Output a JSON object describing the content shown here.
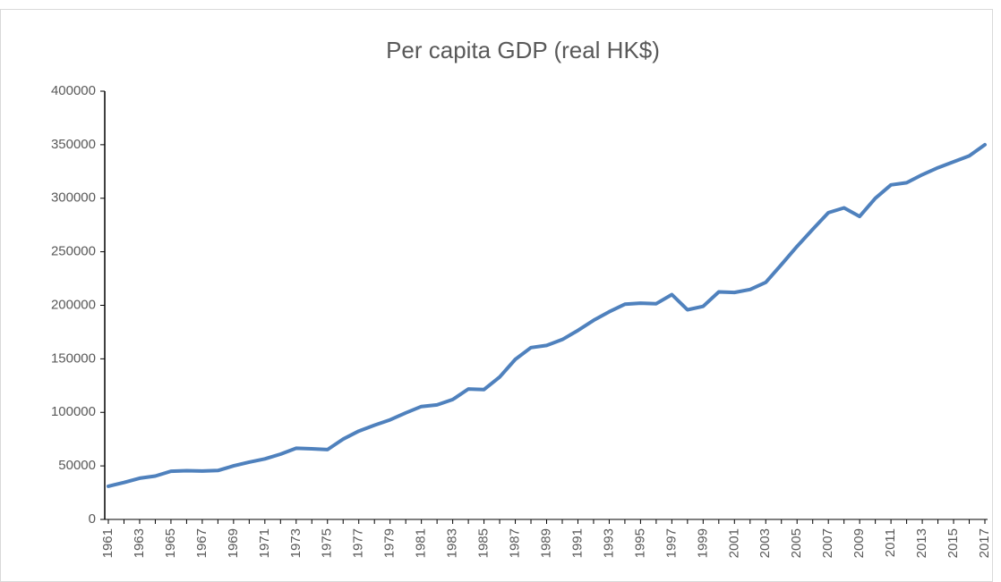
{
  "chart_data": {
    "type": "line",
    "title": "Per capita GDP (real HK$)",
    "categories": [
      "1961",
      null,
      "1963",
      null,
      "1965",
      null,
      "1967",
      null,
      "1969",
      null,
      "1971",
      null,
      "1973",
      null,
      "1975",
      null,
      "1977",
      null,
      "1979",
      null,
      "1981",
      null,
      "1983",
      null,
      "1985",
      null,
      "1987",
      null,
      "1989",
      null,
      "1991",
      null,
      "1993",
      null,
      "1995",
      null,
      "1997",
      null,
      "1999",
      null,
      "2001",
      null,
      "2003",
      null,
      "2005",
      null,
      "2007",
      null,
      "2009",
      null,
      "2011",
      null,
      "2013",
      null,
      "2015",
      null,
      "2017"
    ],
    "series": [
      {
        "name": "Per capita GDP",
        "color": "#4f81bd",
        "values": [
          31000,
          34500,
          38500,
          40500,
          45000,
          45500,
          45200,
          45700,
          50000,
          53500,
          56500,
          61000,
          66500,
          66000,
          65200,
          75000,
          82500,
          88000,
          93000,
          99500,
          105500,
          107000,
          112000,
          121800,
          121300,
          133000,
          149500,
          160500,
          162500,
          168000,
          176500,
          186000,
          194000,
          201000,
          202000,
          201500,
          210000,
          195800,
          199000,
          212500,
          212000,
          214800,
          221500,
          238000,
          255000,
          271000,
          286500,
          291000,
          283000,
          300000,
          312500,
          314500,
          322000,
          328500,
          334000,
          339500,
          350000
        ]
      }
    ],
    "ylim": [
      0,
      400000
    ],
    "yticks": [
      0,
      50000,
      100000,
      150000,
      200000,
      250000,
      300000,
      350000,
      400000
    ],
    "grid": false
  }
}
